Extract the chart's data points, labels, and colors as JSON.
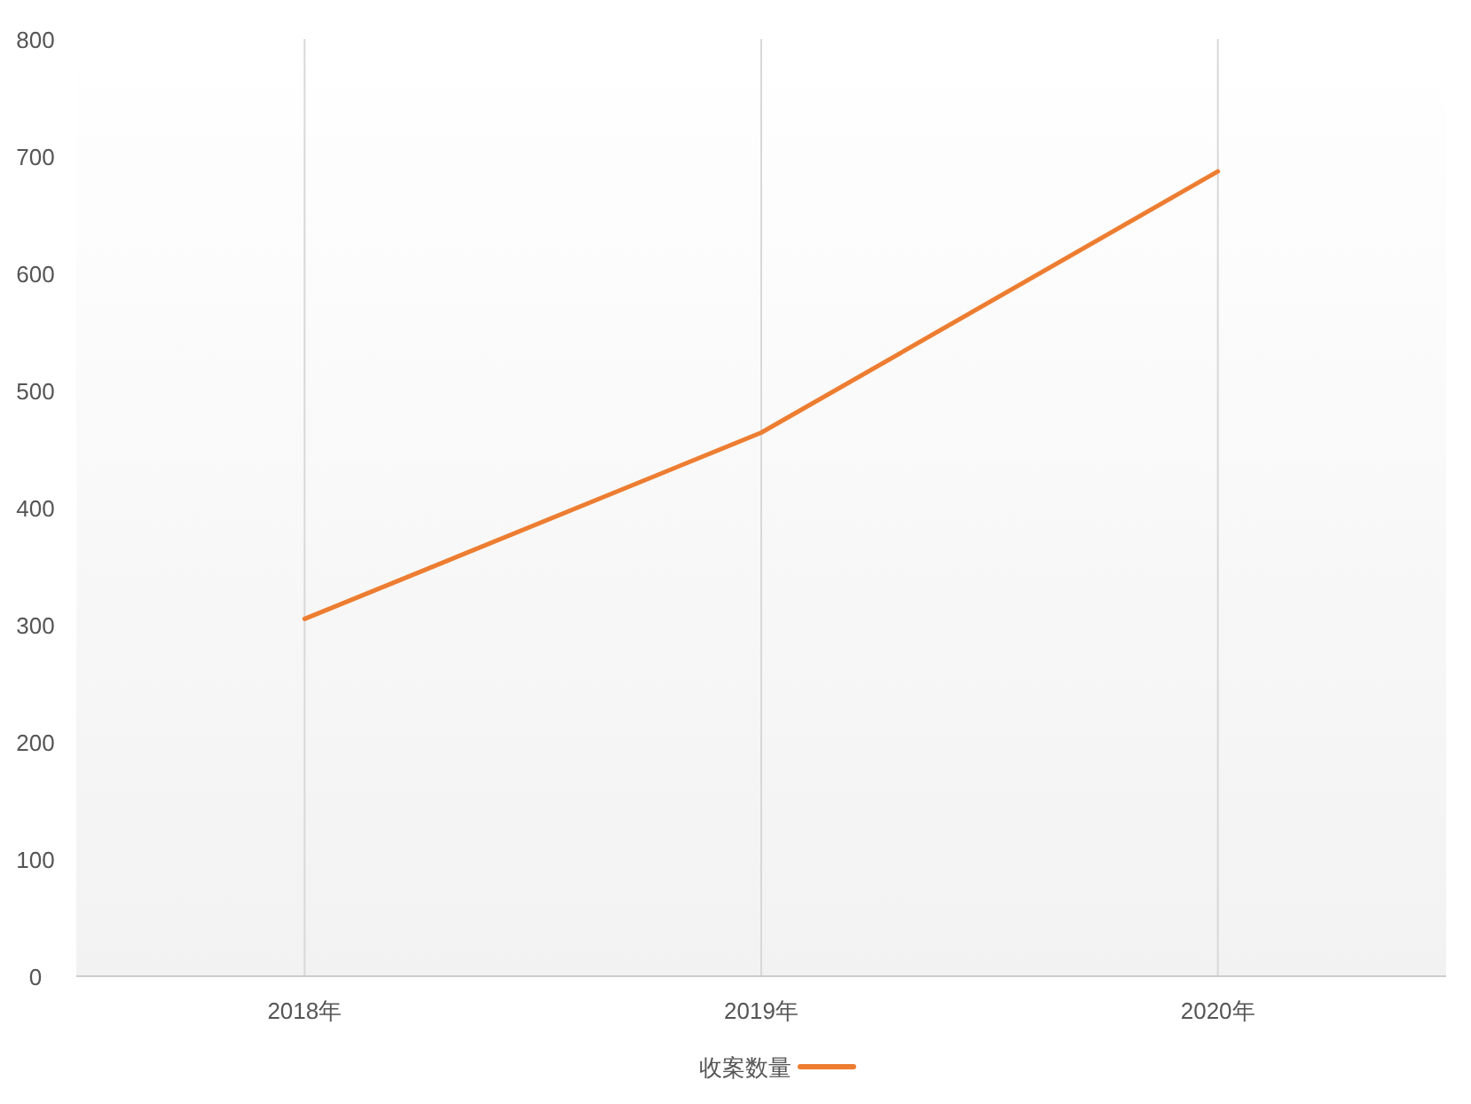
{
  "chart_data": {
    "type": "line",
    "categories": [
      "2018年",
      "2019年",
      "2020年"
    ],
    "series": [
      {
        "name": "收案数量",
        "color": "#ed7d31",
        "values": [
          305,
          464,
          687
        ]
      }
    ],
    "ylim": [
      0,
      800
    ],
    "yticks": [
      0,
      100,
      200,
      300,
      400,
      500,
      600,
      700,
      800
    ],
    "grid": "x",
    "legend": "bottom",
    "marker": "none"
  }
}
